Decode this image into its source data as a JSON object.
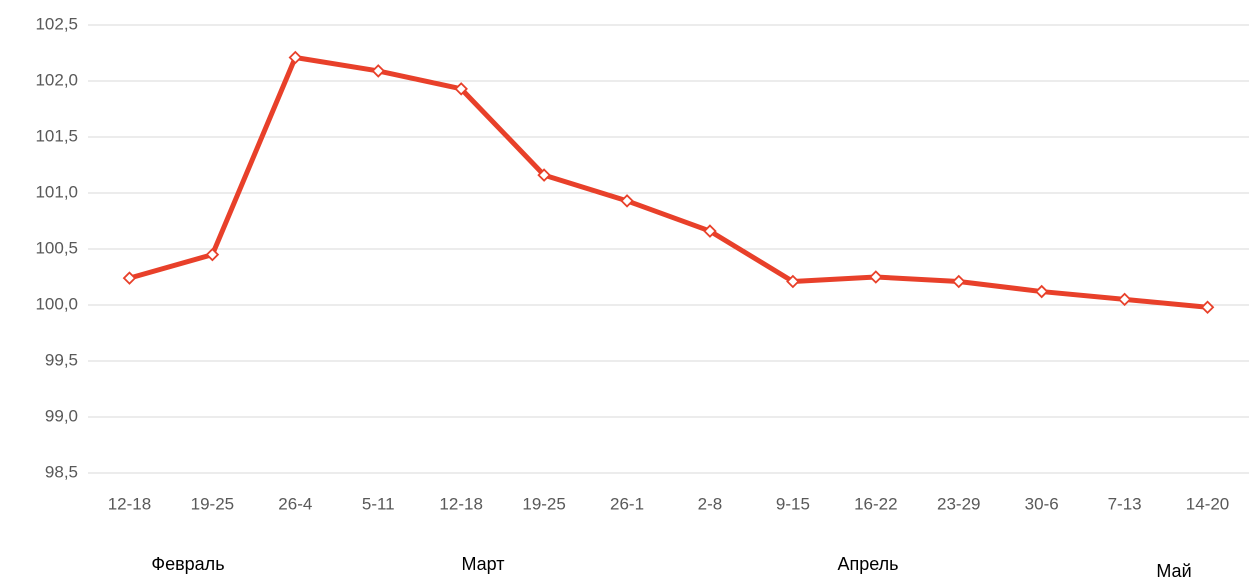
{
  "chart_data": {
    "type": "line",
    "categories": [
      "12-18",
      "19-25",
      "26-4",
      "5-11",
      "12-18",
      "19-25",
      "26-1",
      "2-8",
      "9-15",
      "16-22",
      "23-29",
      "30-6",
      "7-13",
      "14-20"
    ],
    "values": [
      100.24,
      100.45,
      102.21,
      102.09,
      101.93,
      101.16,
      100.93,
      100.66,
      100.21,
      100.25,
      100.21,
      100.12,
      100.05,
      99.98
    ],
    "color": "#e8402a",
    "ylim": [
      98.5,
      102.5
    ],
    "yticks": [
      {
        "value": 98.5,
        "label": "98,5"
      },
      {
        "value": 99,
        "label": "99,0"
      },
      {
        "value": 99.5,
        "label": "99,5"
      },
      {
        "value": 100,
        "label": "100,0"
      },
      {
        "value": 100.5,
        "label": "100,5"
      },
      {
        "value": 101,
        "label": "101,0"
      },
      {
        "value": 101.5,
        "label": "101,5"
      },
      {
        "value": 102,
        "label": "102,0"
      },
      {
        "value": 102.5,
        "label": "102,5"
      }
    ],
    "grid": true,
    "groups": [
      "Февраль",
      "Март",
      "Апрель",
      "Май"
    ]
  }
}
